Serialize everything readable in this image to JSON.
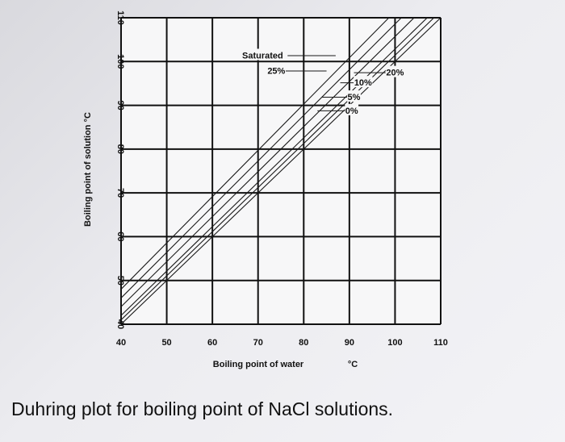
{
  "caption": "Duhring plot for boiling point of NaCl solutions.",
  "chart_data": {
    "type": "line",
    "xlabel": "Boiling point of water",
    "xunit": "°C",
    "ylabel": "Boiling point of solution  °C",
    "xlim": [
      40,
      110
    ],
    "ylim": [
      40,
      110
    ],
    "xticks": [
      "40",
      "50",
      "60",
      "70",
      "80",
      "90",
      "100",
      "110"
    ],
    "yticks": [
      "40",
      "50",
      "60",
      "70",
      "80",
      "90",
      "100",
      "110"
    ],
    "grid": true,
    "series": [
      {
        "name": "0%",
        "x": [
          40,
          110
        ],
        "y": [
          40,
          110
        ]
      },
      {
        "name": "5%",
        "x": [
          40,
          110
        ],
        "y": [
          41,
          111.5
        ]
      },
      {
        "name": "10%",
        "x": [
          40,
          110
        ],
        "y": [
          42,
          113
        ]
      },
      {
        "name": "20%",
        "x": [
          40,
          110
        ],
        "y": [
          44,
          116
        ]
      },
      {
        "name": "25%",
        "x": [
          40,
          110
        ],
        "y": [
          46,
          119
        ]
      },
      {
        "name": "Saturated",
        "x": [
          40,
          110
        ],
        "y": [
          48,
          122
        ]
      }
    ],
    "labels": [
      {
        "series": "Saturated",
        "text": "Saturated",
        "at": [
          71,
          100.7
        ],
        "from": [
          87,
          100.7
        ]
      },
      {
        "series": "25%",
        "text": "25%",
        "at": [
          74,
          97.2
        ],
        "from": [
          85,
          97.2
        ]
      },
      {
        "series": "20%",
        "text": "20%",
        "at": [
          100,
          96.8
        ],
        "from": [
          91,
          96.8
        ]
      },
      {
        "series": "10%",
        "text": "10%",
        "at": [
          93,
          94.5
        ],
        "from": [
          88,
          94.5
        ]
      },
      {
        "series": "5%",
        "text": "5%",
        "at": [
          91,
          91.2
        ],
        "from": [
          84,
          91.2
        ]
      },
      {
        "series": "0%",
        "text": "0%",
        "at": [
          90.5,
          88.1
        ],
        "from": [
          83,
          88.1
        ]
      }
    ]
  }
}
